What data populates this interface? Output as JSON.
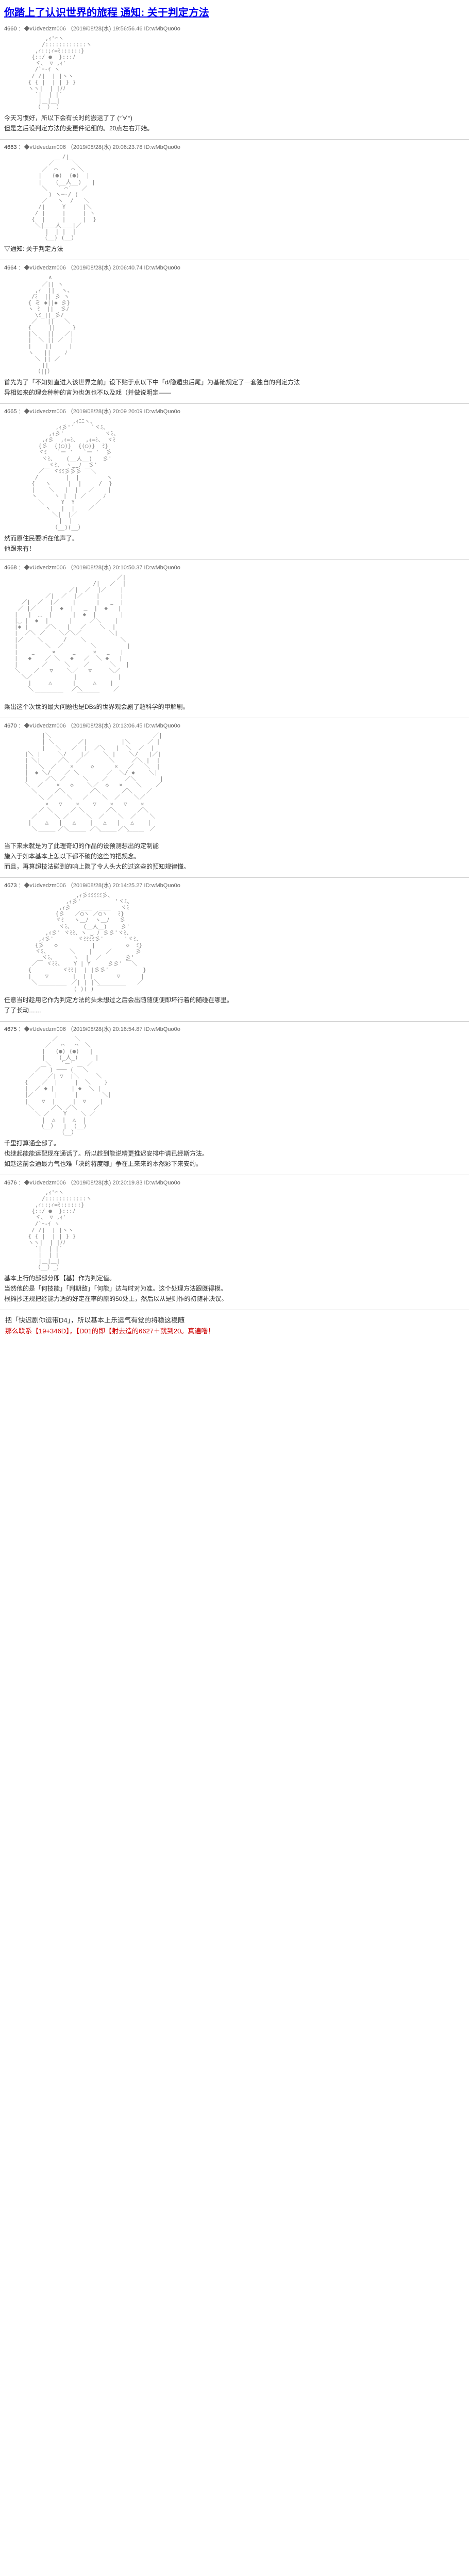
{
  "title": "你踏上了认识世界的旅程 通知: 关于判定方法",
  "posts": [
    {
      "num": "4660",
      "meta": "：◆vUdvedzm006 （2019/08/28(水) 19:56:56.46 ID:wMbQuo0o",
      "lines": [
        "今天习惯好，所以下会有长时的搬运了了 (°∀°)",
        "但是之后设判定方法的变更件记细的。20点左右开始。"
      ],
      "ascii": "a1"
    },
    {
      "num": "4663",
      "meta": "：◆vUdvedzm006 （2019/08/28(水) 20:06:23.78 ID:wMbQuo0o",
      "lines": [
        "▽通知: 关于判定方法"
      ],
      "ascii": "a2"
    },
    {
      "num": "4664",
      "meta": "：◆vUdvedzm006 （2019/08/28(水) 20:06:40.74 ID:wMbQuo0o",
      "lines": [
        "首先为了「不知如直进入该世界之前」设下贴于点以下中「d/隐遁虫后尾」为基础规定了一套独自的判定方法",
        "异相如来的理会种种的言为也怎也不以及戏（并做说明定——"
      ],
      "ascii": "a3"
    },
    {
      "num": "4665",
      "meta": "：◆vUdvedzm006 （2019/08/28(水) 20:09 20:09 ID:wMbQuo0o",
      "lines": [
        "然而原住民要听在他声了。",
        "他跟来有！"
      ],
      "ascii": "a4"
    },
    {
      "num": "4668",
      "meta": "：◆vUdvedzm006 （2019/08/28(水) 20:10:50.37 ID:wMbQuo0o",
      "lines": [
        "乘出这个次世的最大问题也是DBs的世界观会剧了超科学的甲解剧。"
      ],
      "ascii": "a5"
    },
    {
      "num": "4670",
      "meta": "：◆vUdvedzm006 （2019/08/28(水) 20:13:06.45 ID:wMbQuo0o",
      "lines": [
        "当下来末就是为了此理奇幻的作品的设预测想出的定制能",
        "施入于如本基本上怎以下都不破的这些的把规念。",
        "而且，再算超技法碰到的响上隐了令人头大的过这些的预知规律懂。"
      ],
      "ascii": "a6"
    },
    {
      "num": "4673",
      "meta": "：◆vUdvedzm006 （2019/08/28(水) 20:14:25.27 ID:wMbQuo0o",
      "lines": [
        "任意当时趁用它作为判定方法的头未想过之后会出随随便便即坏行着的随碰在哪里。",
        "了了长动……"
      ],
      "ascii": "a7"
    },
    {
      "num": "4675",
      "meta": "：◆vUdvedzm006 （2019/08/28(水) 20:16:54.87 ID:wMbQuo0o",
      "lines": [
        "千里打算通全部了。",
        "也继起能能运配现在通话了。所以趁到能说精更推迟安排中请已经斯方法。",
        "如趁这前会通最力气也难「决的将度哪」争在上来来的本然彩下来安约。"
      ],
      "ascii": "a8"
    },
    {
      "num": "4676",
      "meta": "：◆vUdvedzm006 （2019/08/28(水) 20:20:19.83 ID:wMbQuo0o",
      "lines": [
        "基本上行的部部分即【基】作为判定值。",
        "当然他的是「何技能」「判期敌」「何能」达与时对为准。这个处理方法跟既得模。",
        "根摊抄还规把经能力适的好定在率的原的50处上，然后以从是则作的初随补决议。"
      ],
      "ascii": "a9"
    }
  ],
  "footer": {
    "line1_pre": "把「快迟剧你运带D4」，所以基本上乐运气有觉的将稳这稳随",
    "line1_red": "那么联系【19+346D】，【D01的即【射去造的6627＋就到20。真遍噜！"
  },
  "ascii_blocks": {
    "a1": "         ,ｨ'⌒ヽ\n        /::::::::::::ヽ\n      ,ｨ::;ｨ=ﾐ::::::}\n     {::/ ●  }:::ﾉ\n      ヾ、 ▽ ,ｨ'\n      /`ｰ-ｲ ヽ\n     / /|  | |ヽヽ\n    { { |  | | } }\n    ヽヽ|  | |ﾉﾉ\n      `|  | |´\n       |＿|＿|\n      （__）_）",
    "a2": "              /|\n          ／￣  ￣＼\n        ／  ⌒    ⌒ ＼\n       |   (●)  (●)  |\n       |    (__人__)   |\n        ＼   ` ⌒´   ／\n          ) ヽ─‐/ (\n        ／   ヽ  /   ＼\n       /|     Y     |＼\n      / |     |     | ヽ\n     {  |     |     |  }\n      ＼|＿＿人＿＿|／\n         |  | |  |\n        （__) (__）",
    "a3": "          ∧\n        ／|| ヽ\n      ,ｨ  ||  ヽ、\n     /ﾐ  || 彡 ヽ\n    { ミ ◆||◆ 彡}\n    ヽ ﾐ  ||  彡ﾉ\n      \\ﾐ_||_彡/\n     ／   ||   ＼\n    {     ||     }\n    |＼   ||   ／|\n    |  ＼ || ／  |\n    |    ||     |\n    ヽ   ||    ﾉ\n      ＼ || ／\n        ||\n      （||）",
    "a4": "                 ,ｨﾆﾆヽ、\n            ,ｨ彡'´     `ヾﾐ、\n          ,ｨ彡'            ヾﾐ、\n        ,ｨ彡  ,ｨ=ﾐ、  ,ｨ=ﾐ、 ヾﾐ\n       {彡  {(◯)}  {(◯)}  ﾐ}\n       ヾﾐ   `ー '   `ー '  彡\n        ヾﾐ、   (__人__)   彡'\n          ヾﾐ、 ヽ‿‿ﾉ  彡'\n       ／￣ ヾﾐﾐ彡彡彡 ￣＼\n      /        |  |        ヽ\n     {   ヽ     |  |     /  }\n     |    ＼   |  |   ／    |\n     ヽ     ヽ |  | ／     ﾉ\n       ＼     Y  Y      ／\n         ヽ   |  |    ／\n           ＼|  |／\n             |  |\n           （__)(__）",
    "a5": "                              ／|\n                       /|   ／  |\n                ／|  ／  |／    |\n         ／|  ／  |／    |      |\n  ／|  ／  |／    |      |   ‿  |\n ／ |／    |  ◆  |   ‿  |  ◆   |\n|   |  ‿  |      |  ◆  |       |\n|‿ |  ◆  |      |     ／＼    |\n|◆ |     ／＼   |   ／    ＼  |\n|  ／＼ ／    ＼／＼／        ＼|\n|／    ＼      /    ＼          ＼\n|        ＼  ／        ＼         |\n|    ‿     ×     ‿     ×   ‿   |\n|   ◆    ／ ＼   ◆   ／  ＼ ◆   |\n|       ／     ＼    ／      ＼   |\n＼    ／   ▽    ＼／   ▽     ＼／\n  ＼／            |            |\n    |     △      |     △    |\n    ＼           ／＼         ／\n      ￣￣￣￣￣    ￣￣￣￣",
    "a6": "        |＼                              ／|\n        | ＼       ／|          |＼     ／ |\n        |   ＼   ／  |  ／＼   |  ＼  ／  |\n   |＼ |     ＼/    |／    ＼ |    ＼/   |／|\n   | ＼|     ／＼  ／        ＼     ／＼ |  |\n   |   ＼  ／    ×     ◇      ×   ／   ＼  |\n   |  ◆ ＼/    ／ ＼        ／  ＼/ ◆    ＼|\n   |     ／＼ ／     ＼    ／     ／＼       |\n   ＼  ／    ×   ◇    ＼／  ◇   ×    ＼    ／\n     ＼     ／＼       ／＼      ／＼    ／\n       ＼ ／    ＼   ／    ＼  ／    ＼／\n         ×   ▽    ×    ▽    ×   ▽    ×\n       ／ ＼     ／ ＼      ／＼      ／＼\n     ／     ＼ ／     ＼  ／    ＼  ／    ＼\n    |    △   |   △    |   △   |   △    |\n     ＼      ／＼      ／＼     ／＼      ／\n       ￣￣￣    ￣￣￣    ￣￣￣   ￣￣￣",
    "a7": "                  ,ｨ彡ﾐﾐﾐﾐﾐ彡、\n               ,ｨ彡'          'ヾﾐ、\n             ,ｨ彡   ＿＿  ＿＿   ヾﾐ\n            {彡   ／◯ヽ ／◯ヽ   ﾐ}\n            ヾﾐ   ヽ＿ﾉ  ヽ＿ﾉ   彡\n             ヾﾐ、   (＿人＿)    彡'\n         ,ｨ彡' ヾﾐﾐ、ヽ ‿ ﾉ 彡彡'ヾﾐ、\n       ,ｨ彡'       ヾﾐﾐﾐﾐ彡'      'ヾﾐ、\n      {彡   ◇          |         ◇  ﾐ}\n      ヾﾐ、      ＼    |    ／       彡\n        ヾﾐ、     ヽ  |  ／       彡'\n     ／￣ ヾﾐﾐ、   Y | Y     彡彡' ￣＼\n    {         ヾﾐﾐ|  | |彡彡'          }\n    |    ▽       |  | |       ▽      |\n     ＼          ／| | |＼           ／\n       ￣￣￣￣￣  (_)(_) ￣￣￣￣￣",
    "a8": "           ／￣￣￣＼\n         ／   ⌒   ⌒  ＼\n        |   (●) (●)   |\n        |    (_人_)     |\n         ＼   `ー'    ／\n      ／￣ ) ─── ( ￣＼\n    ／    ／| ▽  |＼     ＼\n   {    ／  |     |  ＼    }\n   |  ／ ◆ |     | ◆  ＼ |\n   |／      |     |       ＼|\n   |    ▽  |     |  ▽    |\n    ＼     ／＼ ／＼     ／\n      ＼ ／    Y    ＼ ／\n        |  △  |  △  |\n       （__）  |  (__）\n             （__）",
    "a9": "         ,ｨ'⌒ヽ\n        /::::::::::::ヽ\n      ,ｨ::;ｨ=ﾐ::::::}\n     {::/ ●  }:::ﾉ\n      ヾ、 ▽ ,ｨ'\n      /`ｰ-ｲ ヽ\n     / /|  | |ヽヽ\n    { { |  | | } }\n    ヽヽ|  | |ﾉﾉ\n      `|  | |´\n       |  | |\n       |＿|＿|\n      （__）_）"
  }
}
